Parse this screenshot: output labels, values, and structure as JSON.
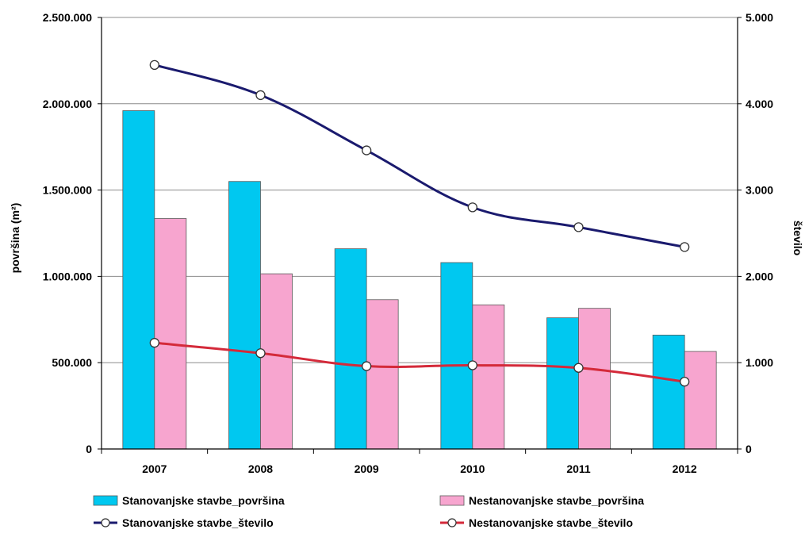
{
  "chart_data": {
    "type": "bar",
    "categories": [
      "2007",
      "2008",
      "2009",
      "2010",
      "2011",
      "2012"
    ],
    "bar_series": [
      {
        "name": "Stanovanjske stavbe_površina",
        "color": "#00c8f0",
        "values": [
          1960000,
          1550000,
          1160000,
          1080000,
          760000,
          660000
        ]
      },
      {
        "name": "Nestanovanjske stavbe_površina",
        "color": "#f7a5cf",
        "values": [
          1335000,
          1015000,
          865000,
          835000,
          815000,
          565000
        ]
      }
    ],
    "line_series": [
      {
        "name": "Stanovanjske stavbe_število",
        "color": "#1a1a6e",
        "values": [
          4450,
          4100,
          3460,
          2800,
          2570,
          2340
        ]
      },
      {
        "name": "Nestanovanjske stavbe_število",
        "color": "#d42a3a",
        "values": [
          1230,
          1110,
          960,
          970,
          940,
          780
        ]
      }
    ],
    "y_left": {
      "label": "površina (m²)",
      "ylim": [
        0,
        2500000
      ],
      "ticks": [
        0,
        500000,
        1000000,
        1500000,
        2000000,
        2500000
      ],
      "tick_labels": [
        "0",
        "500.000",
        "1.000.000",
        "1.500.000",
        "2.000.000",
        "2.500.000"
      ]
    },
    "y_right": {
      "label": "število",
      "ylim": [
        0,
        5000
      ],
      "ticks": [
        0,
        1000,
        2000,
        3000,
        4000,
        5000
      ],
      "tick_labels": [
        "0",
        "1.000",
        "2.000",
        "3.000",
        "4.000",
        "5.000"
      ]
    },
    "grid": true,
    "legend_position": "bottom"
  }
}
